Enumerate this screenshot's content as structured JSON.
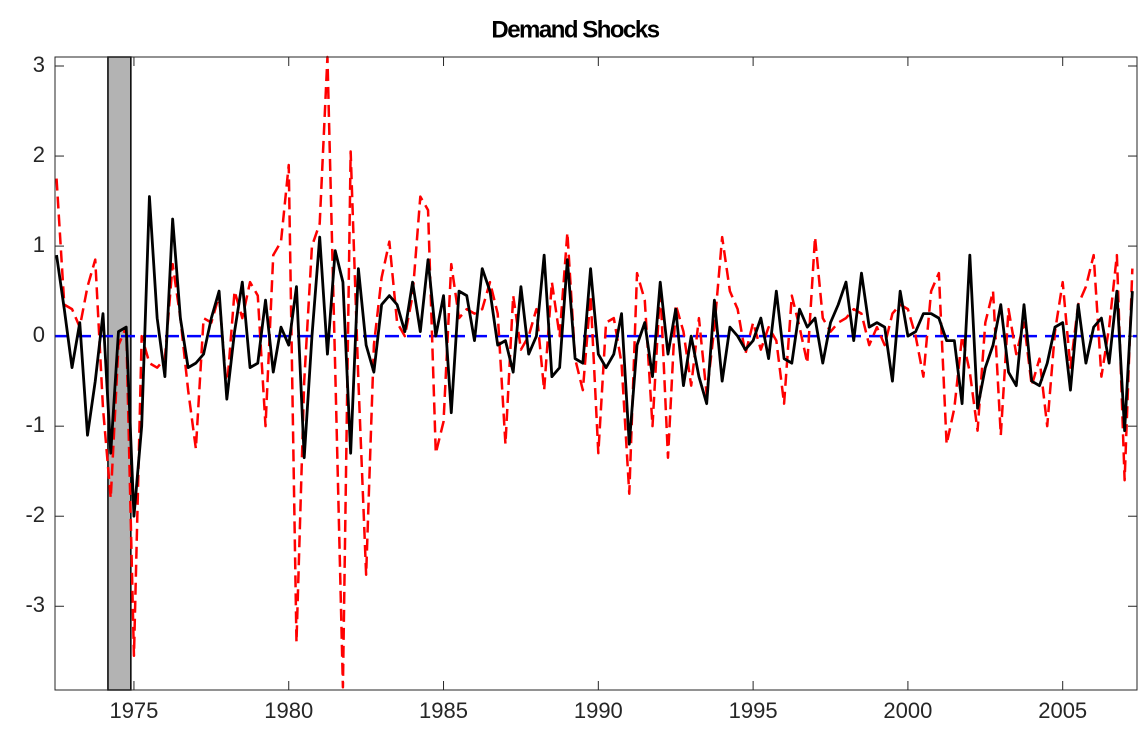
{
  "chart_data": {
    "type": "line",
    "title": "Demand Shocks",
    "x": [
      1972.5,
      1972.75,
      1973,
      1973.25,
      1973.5,
      1973.75,
      1974,
      1974.25,
      1974.5,
      1974.75,
      1975,
      1975.25,
      1975.5,
      1975.75,
      1976,
      1976.25,
      1976.5,
      1976.75,
      1977,
      1977.25,
      1977.5,
      1977.75,
      1978,
      1978.25,
      1978.5,
      1978.75,
      1979,
      1979.25,
      1979.5,
      1979.75,
      1980,
      1980.25,
      1980.5,
      1980.75,
      1981,
      1981.25,
      1981.5,
      1981.75,
      1982,
      1982.25,
      1982.5,
      1982.75,
      1983,
      1983.25,
      1983.5,
      1983.75,
      1984,
      1984.25,
      1984.5,
      1984.75,
      1985,
      1985.25,
      1985.5,
      1985.75,
      1986,
      1986.25,
      1986.5,
      1986.75,
      1987,
      1987.25,
      1987.5,
      1987.75,
      1988,
      1988.25,
      1988.5,
      1988.75,
      1989,
      1989.25,
      1989.5,
      1989.75,
      1990,
      1990.25,
      1990.5,
      1990.75,
      1991,
      1991.25,
      1991.5,
      1991.75,
      1992,
      1992.25,
      1992.5,
      1992.75,
      1993,
      1993.25,
      1993.5,
      1993.75,
      1994,
      1994.25,
      1994.5,
      1994.75,
      1995,
      1995.25,
      1995.5,
      1995.75,
      1996,
      1996.25,
      1996.5,
      1996.75,
      1997,
      1997.25,
      1997.5,
      1997.75,
      1998,
      1998.25,
      1998.5,
      1998.75,
      1999,
      1999.25,
      1999.5,
      1999.75,
      2000,
      2000.25,
      2000.5,
      2000.75,
      2001,
      2001.25,
      2001.5,
      2001.75,
      2002,
      2002.25,
      2002.5,
      2002.75,
      2003,
      2003.25,
      2003.5,
      2003.75,
      2004,
      2004.25,
      2004.5,
      2004.75,
      2005,
      2005.25,
      2005.5,
      2005.75,
      2006,
      2006.25,
      2006.5,
      2006.75,
      2007,
      2007.25
    ],
    "series": [
      {
        "color": "#ff0000",
        "dash": true,
        "values": [
          1.75,
          0.35,
          0.3,
          0.1,
          0.55,
          0.85,
          -0.8,
          -1.8,
          -0.1,
          0.1,
          -3.55,
          0.0,
          -0.3,
          -0.35,
          -0.25,
          0.8,
          0.2,
          -0.6,
          -1.25,
          0.2,
          0.15,
          0.45,
          -0.6,
          0.5,
          0.2,
          0.6,
          0.45,
          -1.0,
          0.9,
          1.05,
          1.9,
          -3.4,
          -0.5,
          1.0,
          1.25,
          3.1,
          -0.35,
          -3.9,
          2.05,
          -0.5,
          -2.65,
          -0.1,
          0.65,
          1.05,
          0.15,
          0.0,
          0.45,
          1.55,
          1.4,
          -1.3,
          -0.95,
          0.8,
          0.2,
          0.3,
          0.25,
          0.3,
          0.6,
          0.25,
          -1.2,
          0.45,
          -0.15,
          0.0,
          0.3,
          -0.6,
          0.6,
          0.0,
          1.15,
          -0.25,
          -0.6,
          0.45,
          -1.3,
          0.15,
          0.2,
          -0.3,
          -1.75,
          0.7,
          0.4,
          -1.0,
          0.55,
          -1.35,
          0.35,
          0.05,
          -0.55,
          0.2,
          -0.65,
          0.1,
          1.1,
          0.5,
          0.3,
          -0.2,
          0.15,
          -0.15,
          0.1,
          -0.05,
          -0.75,
          0.45,
          0.1,
          -0.3,
          1.1,
          0.2,
          0.05,
          0.15,
          0.2,
          0.3,
          0.25,
          -0.1,
          0.1,
          -0.1,
          0.25,
          0.35,
          0.3,
          0.0,
          -0.45,
          0.5,
          0.7,
          -1.2,
          -0.8,
          0.0,
          -0.4,
          -1.05,
          0.15,
          0.5,
          -1.1,
          0.3,
          -0.2,
          0.15,
          -0.55,
          -0.25,
          -1.0,
          0.05,
          0.6,
          -0.35,
          0.35,
          0.55,
          0.9,
          -0.45,
          0.1,
          0.9,
          -1.6,
          0.75
        ]
      },
      {
        "color": "#000000",
        "dash": false,
        "values": [
          0.9,
          0.3,
          -0.35,
          0.15,
          -1.1,
          -0.5,
          0.25,
          -1.3,
          0.05,
          0.1,
          -2.0,
          -1.0,
          1.55,
          0.2,
          -0.45,
          1.3,
          0.2,
          -0.35,
          -0.3,
          -0.2,
          0.2,
          0.5,
          -0.7,
          0.05,
          0.6,
          -0.35,
          -0.3,
          0.4,
          -0.4,
          0.1,
          -0.1,
          0.55,
          -1.35,
          0.0,
          1.1,
          -0.2,
          0.95,
          0.6,
          -1.3,
          0.75,
          -0.1,
          -0.4,
          0.35,
          0.45,
          0.35,
          0.05,
          0.6,
          0.05,
          0.85,
          0.0,
          0.45,
          -0.85,
          0.5,
          0.45,
          -0.05,
          0.75,
          0.5,
          -0.1,
          -0.05,
          -0.4,
          0.55,
          -0.2,
          0.0,
          0.9,
          -0.45,
          -0.35,
          0.85,
          -0.25,
          -0.3,
          0.75,
          -0.2,
          -0.35,
          -0.2,
          0.25,
          -1.2,
          -0.1,
          0.15,
          -0.45,
          0.6,
          -0.2,
          0.3,
          -0.55,
          0.0,
          -0.45,
          -0.75,
          0.4,
          -0.5,
          0.1,
          0.0,
          -0.15,
          -0.05,
          0.2,
          -0.25,
          0.5,
          -0.25,
          -0.3,
          0.3,
          0.1,
          0.2,
          -0.3,
          0.15,
          0.35,
          0.6,
          -0.05,
          0.7,
          0.1,
          0.15,
          0.1,
          -0.5,
          0.5,
          0.0,
          0.05,
          0.25,
          0.25,
          0.2,
          -0.05,
          -0.05,
          -0.75,
          0.9,
          -0.8,
          -0.35,
          -0.1,
          0.35,
          -0.4,
          -0.55,
          0.35,
          -0.5,
          -0.55,
          -0.3,
          0.1,
          0.15,
          -0.6,
          0.35,
          -0.3,
          0.1,
          0.2,
          -0.3,
          0.5,
          -1.05,
          0.5
        ]
      }
    ],
    "hline": {
      "value": 0,
      "color": "#0000ff"
    },
    "shaded_regions": [
      {
        "start": 1974.16,
        "end": 1974.9,
        "color": "#b3b3b3"
      }
    ],
    "xlim": [
      1972.45,
      2007.4
    ],
    "xticks": [
      1975,
      1980,
      1985,
      1990,
      1995,
      2000,
      2005
    ],
    "ylim": [
      -3.93,
      3.1
    ],
    "yticks": [
      -3,
      -2,
      -1,
      0,
      1,
      2,
      3
    ]
  }
}
